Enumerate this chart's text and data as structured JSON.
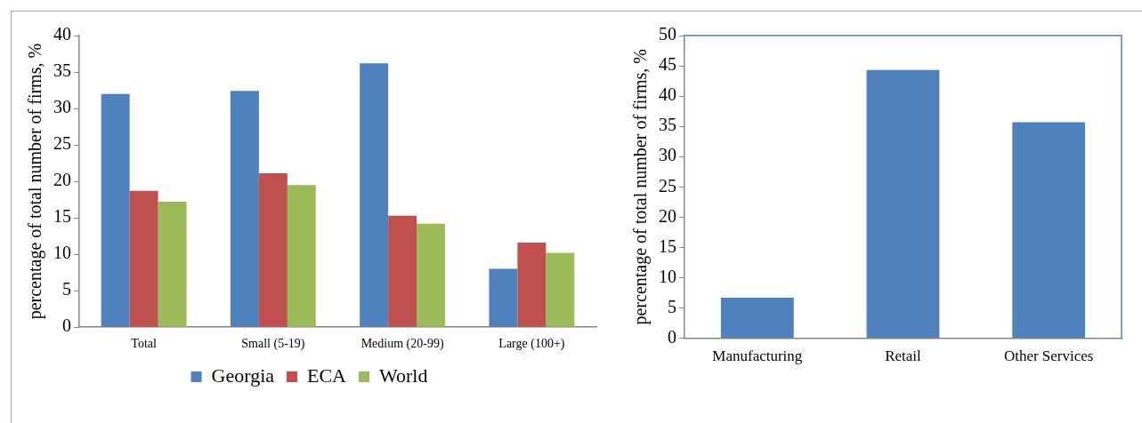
{
  "chart_data": [
    {
      "type": "bar",
      "ylabel": "percentage of total number of firms, %",
      "categories": [
        "Total",
        "Small (5-19)",
        "Medium (20-99)",
        "Large (100+)"
      ],
      "series": [
        {
          "name": "Georgia",
          "color": "#4f81bd",
          "values": [
            32,
            32.4,
            36.2,
            8
          ]
        },
        {
          "name": "ECA",
          "color": "#c0504d",
          "values": [
            18.7,
            21.1,
            15.3,
            11.6
          ]
        },
        {
          "name": "World",
          "color": "#9bbb59",
          "values": [
            17.2,
            19.5,
            14.2,
            10.2
          ]
        }
      ],
      "ylim": [
        0,
        40
      ],
      "yticks": [
        0,
        5,
        10,
        15,
        20,
        25,
        30,
        35,
        40
      ],
      "grid": false,
      "legend": "bottom"
    },
    {
      "type": "bar",
      "ylabel": "percentage of total number of firms, %",
      "categories": [
        "Manufacturing",
        "Retail",
        "Other Services"
      ],
      "series": [
        {
          "color": "#4f81bd",
          "values": [
            6.7,
            44.3,
            35.7
          ]
        }
      ],
      "ylim": [
        0,
        50
      ],
      "yticks": [
        0,
        5,
        10,
        15,
        20,
        25,
        30,
        35,
        40,
        45,
        50
      ],
      "grid": false
    }
  ]
}
